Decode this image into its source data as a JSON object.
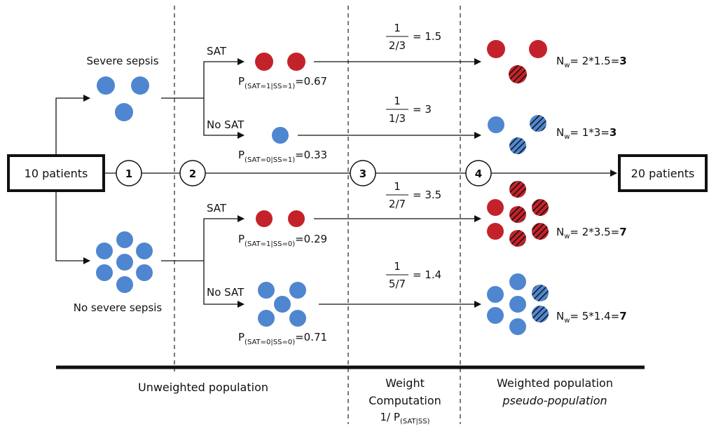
{
  "boxes": {
    "start": "10 patients",
    "end": "20 patients"
  },
  "steps": [
    "1",
    "2",
    "3",
    "4"
  ],
  "groups": {
    "severe": "Severe sepsis",
    "no_severe": "No severe sepsis"
  },
  "branches": {
    "sat": "SAT",
    "no_sat": "No SAT"
  },
  "probabilities": [
    {
      "main": "P",
      "sub": "(SAT=1|SS=1)",
      "value": "=0.67"
    },
    {
      "main": "P",
      "sub": "(SAT=0|SS=1)",
      "value": "=0.33"
    },
    {
      "main": "P",
      "sub": "(SAT=1|SS=0)",
      "value": "=0.29"
    },
    {
      "main": "P",
      "sub": "(SAT=0|SS=0)",
      "value": "=0.71"
    }
  ],
  "weights": [
    {
      "num": "1",
      "den": "2/3",
      "result": "= 1.5"
    },
    {
      "num": "1",
      "den": "1/3",
      "result": "= 3"
    },
    {
      "num": "1",
      "den": "2/7",
      "result": "= 3.5"
    },
    {
      "num": "1",
      "den": "5/7",
      "result": "= 1.4"
    }
  ],
  "nw": [
    {
      "main": "N",
      "sub": "w",
      "expr": "= 2*1.5=",
      "bold": "3"
    },
    {
      "main": "N",
      "sub": "w",
      "expr": "= 1*3=",
      "bold": "3"
    },
    {
      "main": "N",
      "sub": "w",
      "expr": "= 2*3.5=",
      "bold": "7"
    },
    {
      "main": "N",
      "sub": "w",
      "expr": "= 5*1.4=",
      "bold": "7"
    }
  ],
  "footer": {
    "unweighted": "Unweighted population",
    "weight_line1": "Weight",
    "weight_line2": "Computation",
    "weight_line3_main": "1/ P",
    "weight_line3_sub": "(SAT|SS)",
    "weighted": "Weighted population",
    "pseudo": "pseudo-population"
  },
  "colors": {
    "red": "#c4222a",
    "blue": "#4f86d0",
    "stroke": "#111111"
  }
}
